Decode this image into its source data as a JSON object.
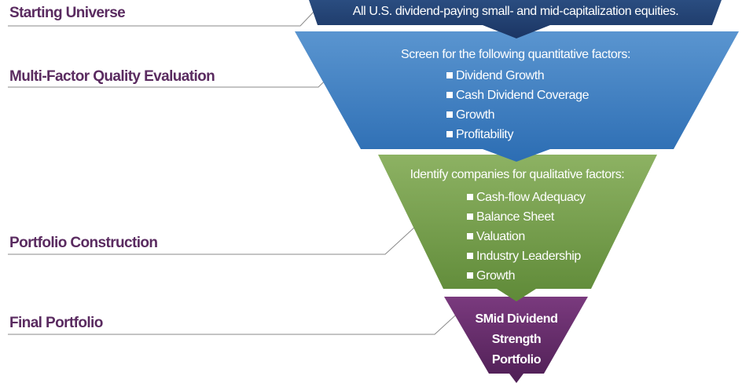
{
  "stages": [
    {
      "label": "Starting Universe",
      "description": "All U.S. dividend-paying small- and mid-capitalization equities."
    },
    {
      "label": "Multi-Factor Quality Evaluation",
      "description": "Screen for the following quantitative factors:",
      "items": [
        "Dividend Growth",
        "Cash Dividend Coverage",
        "Growth",
        "Profitability"
      ]
    },
    {
      "label": "Portfolio Construction",
      "description": "Identify companies for qualitative factors:",
      "items": [
        "Cash-flow Adequacy",
        "Balance Sheet",
        "Valuation",
        "Industry Leadership",
        "Growth"
      ]
    },
    {
      "label": "Final Portfolio",
      "description": "SMid Dividend Strength Portfolio"
    }
  ]
}
